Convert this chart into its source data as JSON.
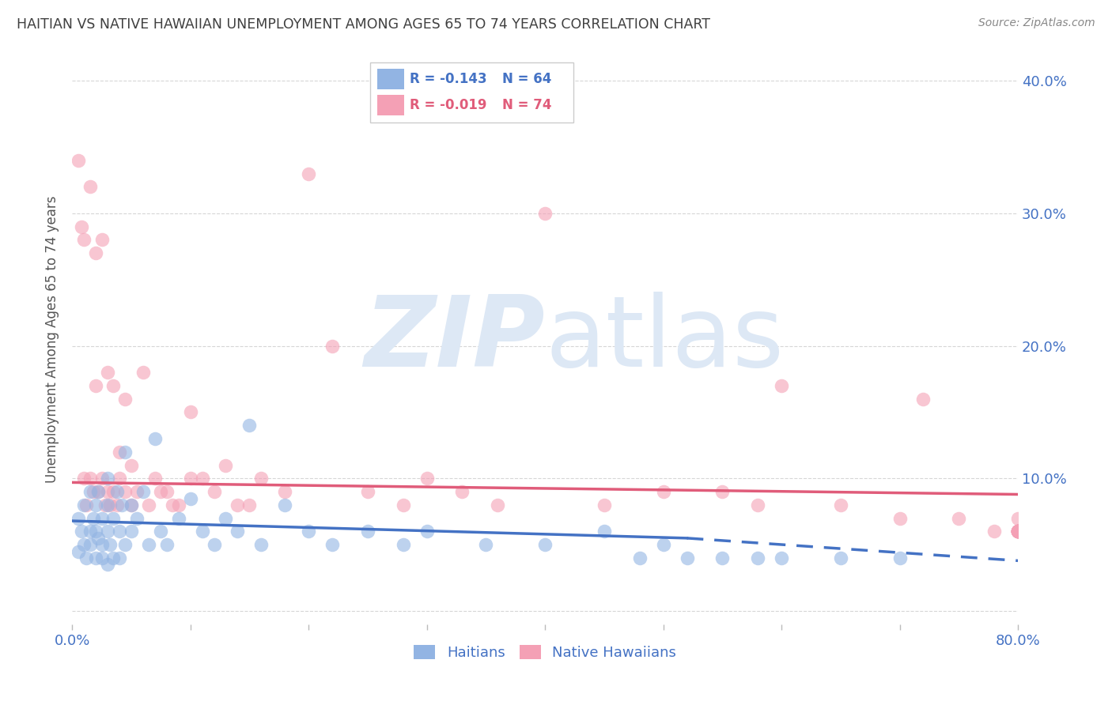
{
  "title": "HAITIAN VS NATIVE HAWAIIAN UNEMPLOYMENT AMONG AGES 65 TO 74 YEARS CORRELATION CHART",
  "source": "Source: ZipAtlas.com",
  "ylabel": "Unemployment Among Ages 65 to 74 years",
  "xlim": [
    0,
    0.8
  ],
  "ylim": [
    -0.01,
    0.42
  ],
  "legend_haitian_R": "R = -0.143",
  "legend_haitian_N": "N = 64",
  "legend_hawaiian_R": "R = -0.019",
  "legend_hawaiian_N": "N = 74",
  "color_haitian": "#92b4e3",
  "color_hawaiian": "#f4a0b5",
  "color_haitian_line": "#4472c4",
  "color_hawaiian_line": "#e05c7a",
  "color_axis_labels": "#4472c4",
  "color_title": "#404040",
  "watermark_color": "#dde8f5",
  "background_color": "#ffffff",
  "grid_color": "#cccccc",
  "haitian_x": [
    0.005,
    0.005,
    0.008,
    0.01,
    0.01,
    0.012,
    0.015,
    0.015,
    0.015,
    0.018,
    0.02,
    0.02,
    0.02,
    0.022,
    0.022,
    0.025,
    0.025,
    0.025,
    0.03,
    0.03,
    0.03,
    0.03,
    0.032,
    0.035,
    0.035,
    0.038,
    0.04,
    0.04,
    0.042,
    0.045,
    0.045,
    0.05,
    0.05,
    0.055,
    0.06,
    0.065,
    0.07,
    0.075,
    0.08,
    0.09,
    0.1,
    0.11,
    0.12,
    0.13,
    0.14,
    0.15,
    0.16,
    0.18,
    0.2,
    0.22,
    0.25,
    0.28,
    0.3,
    0.35,
    0.4,
    0.45,
    0.48,
    0.5,
    0.52,
    0.55,
    0.58,
    0.6,
    0.65,
    0.7
  ],
  "haitian_y": [
    0.07,
    0.045,
    0.06,
    0.05,
    0.08,
    0.04,
    0.06,
    0.09,
    0.05,
    0.07,
    0.06,
    0.04,
    0.08,
    0.055,
    0.09,
    0.04,
    0.07,
    0.05,
    0.06,
    0.08,
    0.035,
    0.1,
    0.05,
    0.07,
    0.04,
    0.09,
    0.06,
    0.04,
    0.08,
    0.05,
    0.12,
    0.06,
    0.08,
    0.07,
    0.09,
    0.05,
    0.13,
    0.06,
    0.05,
    0.07,
    0.085,
    0.06,
    0.05,
    0.07,
    0.06,
    0.14,
    0.05,
    0.08,
    0.06,
    0.05,
    0.06,
    0.05,
    0.06,
    0.05,
    0.05,
    0.06,
    0.04,
    0.05,
    0.04,
    0.04,
    0.04,
    0.04,
    0.04,
    0.04
  ],
  "hawaiian_x": [
    0.005,
    0.008,
    0.01,
    0.01,
    0.012,
    0.015,
    0.015,
    0.018,
    0.02,
    0.02,
    0.022,
    0.025,
    0.025,
    0.028,
    0.03,
    0.03,
    0.032,
    0.035,
    0.035,
    0.038,
    0.04,
    0.04,
    0.045,
    0.045,
    0.05,
    0.05,
    0.055,
    0.06,
    0.065,
    0.07,
    0.075,
    0.08,
    0.085,
    0.09,
    0.1,
    0.1,
    0.11,
    0.12,
    0.13,
    0.14,
    0.15,
    0.16,
    0.18,
    0.2,
    0.22,
    0.25,
    0.28,
    0.3,
    0.33,
    0.36,
    0.4,
    0.45,
    0.5,
    0.55,
    0.58,
    0.6,
    0.65,
    0.7,
    0.72,
    0.75,
    0.78,
    0.8,
    0.8,
    0.8,
    0.8,
    0.8,
    0.8,
    0.8,
    0.8,
    0.8,
    0.8,
    0.8,
    0.8,
    0.8
  ],
  "hawaiian_y": [
    0.34,
    0.29,
    0.28,
    0.1,
    0.08,
    0.32,
    0.1,
    0.09,
    0.27,
    0.17,
    0.09,
    0.28,
    0.1,
    0.08,
    0.18,
    0.09,
    0.08,
    0.17,
    0.09,
    0.08,
    0.12,
    0.1,
    0.16,
    0.09,
    0.11,
    0.08,
    0.09,
    0.18,
    0.08,
    0.1,
    0.09,
    0.09,
    0.08,
    0.08,
    0.15,
    0.1,
    0.1,
    0.09,
    0.11,
    0.08,
    0.08,
    0.1,
    0.09,
    0.33,
    0.2,
    0.09,
    0.08,
    0.1,
    0.09,
    0.08,
    0.3,
    0.08,
    0.09,
    0.09,
    0.08,
    0.17,
    0.08,
    0.07,
    0.16,
    0.07,
    0.06,
    0.07,
    0.06,
    0.06,
    0.06,
    0.06,
    0.06,
    0.06,
    0.06,
    0.06,
    0.06,
    0.06,
    0.06,
    0.06
  ],
  "haitian_trend_x0": 0.0,
  "haitian_trend_x_solid_end": 0.52,
  "haitian_trend_x1": 0.8,
  "haitian_trend_y0": 0.068,
  "haitian_trend_y_solid_end": 0.055,
  "haitian_trend_y1": 0.038,
  "hawaiian_trend_x0": 0.0,
  "hawaiian_trend_x1": 0.8,
  "hawaiian_trend_y0": 0.097,
  "hawaiian_trend_y1": 0.088
}
